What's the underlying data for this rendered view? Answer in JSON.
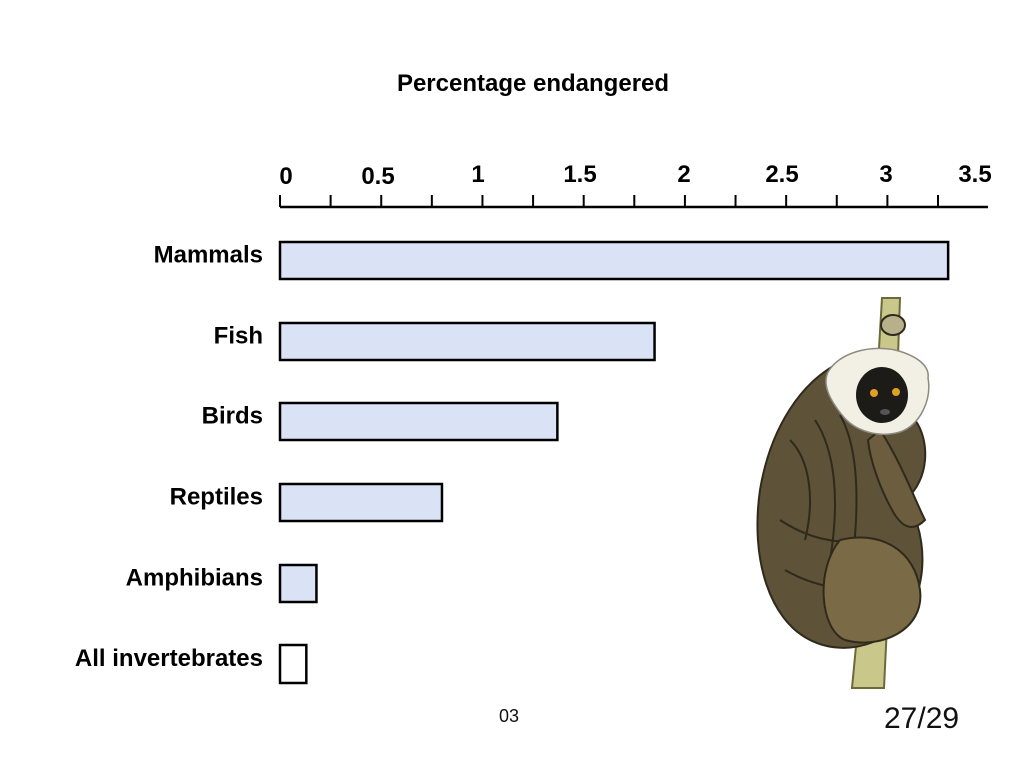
{
  "chart_data": {
    "type": "bar",
    "orientation": "horizontal",
    "title": "Percentage endangered",
    "categories": [
      "Mammals",
      "Fish",
      "Birds",
      "Reptiles",
      "Amphibians",
      "All invertebrates"
    ],
    "values": [
      3.3,
      1.85,
      1.37,
      0.8,
      0.18,
      0.13
    ],
    "xlim": [
      0,
      3.5
    ],
    "xticks": [
      "0",
      "0.5",
      "1",
      "1.5",
      "2",
      "2.5",
      "3",
      "3.5"
    ],
    "axis_position": "top",
    "grid": false,
    "colors": [
      "#dae3f6",
      "#dae3f6",
      "#dae3f6",
      "#dae3f6",
      "#dae3f6",
      "#ffffff"
    ]
  },
  "slide": {
    "footer_code": "03",
    "page_number": "27/29",
    "illustration": "lemur-hanging-on-branch-illustration"
  }
}
